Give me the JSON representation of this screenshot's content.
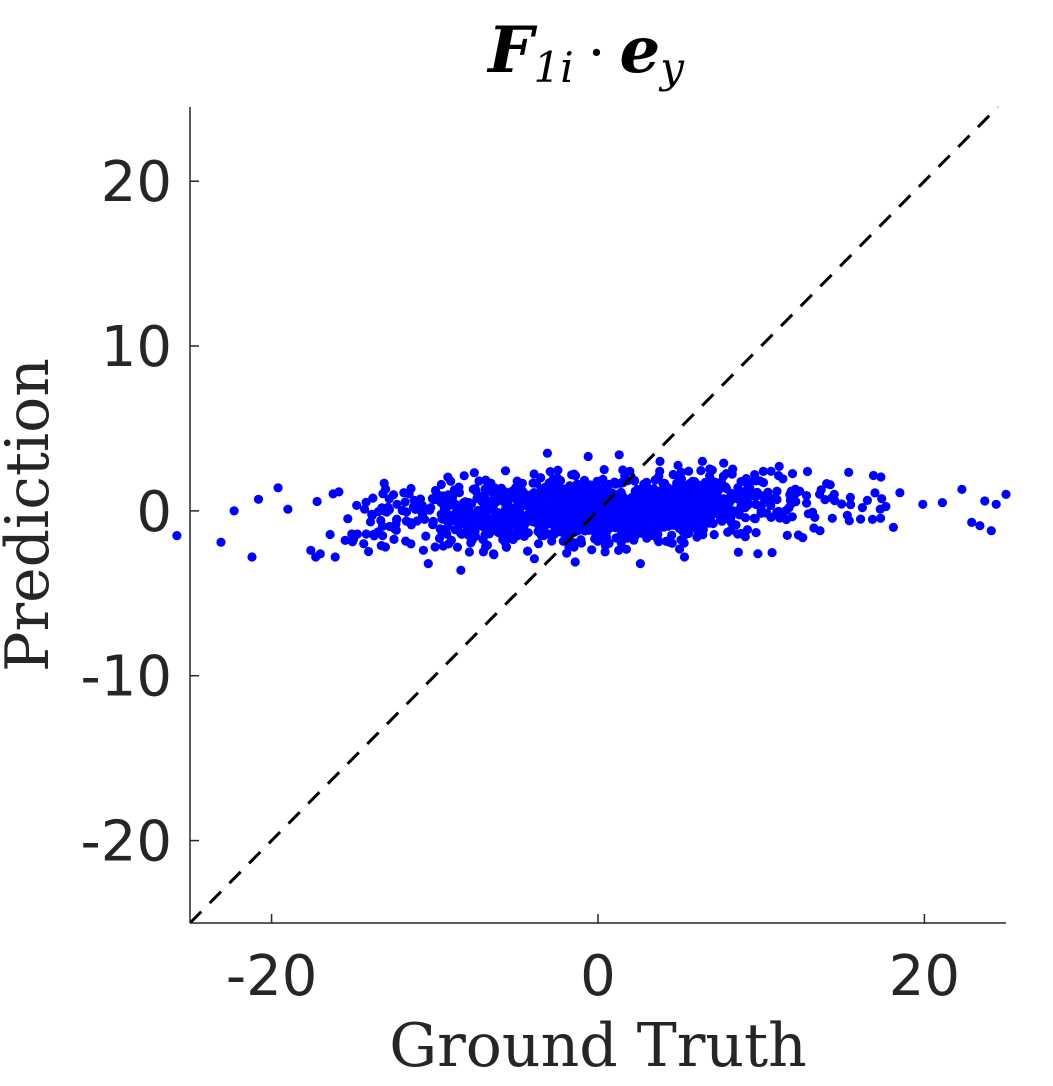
{
  "chart_data": {
    "type": "scatter",
    "title": {
      "main": "F",
      "sub1": "1i",
      "dot": "·",
      "main2": "e",
      "sub2": "y"
    },
    "xlabel": "Ground Truth",
    "ylabel": "Prediction",
    "xlim": [
      -25,
      25
    ],
    "ylim": [
      -25,
      24.5
    ],
    "xticks": [
      -20,
      0,
      20
    ],
    "yticks": [
      -20,
      -10,
      0,
      10,
      20
    ],
    "xtick_labels": [
      "-20",
      "0",
      "20"
    ],
    "ytick_labels": [
      "-20",
      "-10",
      "0",
      "10",
      "20"
    ],
    "grid": false,
    "reference_line": {
      "type": "identity",
      "style": "dashed",
      "color": "#000000"
    },
    "marker_color": "#0000ff",
    "series": [
      {
        "color": "#0000ff",
        "sample_points": [
          [
            -25.8,
            -1.5
          ],
          [
            -23.1,
            -1.9
          ],
          [
            -22.3,
            0.0
          ],
          [
            -21.2,
            -2.8
          ],
          [
            -20.8,
            0.7
          ],
          [
            -19.6,
            1.4
          ],
          [
            -19.0,
            0.1
          ],
          [
            -17.6,
            -2.4
          ],
          [
            -17.3,
            -2.8
          ],
          [
            -16.1,
            -2.8
          ],
          [
            -14.2,
            -1.4
          ],
          [
            -13.2,
            -1.5
          ],
          [
            -10.4,
            -3.2
          ],
          [
            -8.4,
            -3.6
          ],
          [
            -9.6,
            1.6
          ],
          [
            -3.1,
            3.5
          ],
          [
            -0.6,
            3.3
          ],
          [
            1.3,
            3.4
          ],
          [
            3.8,
            3.0
          ],
          [
            6.4,
            3.0
          ],
          [
            7.7,
            2.9
          ],
          [
            9.6,
            2.2
          ],
          [
            10.6,
            2.4
          ],
          [
            11.1,
            2.7
          ],
          [
            9.8,
            -2.6
          ],
          [
            5.3,
            -2.8
          ],
          [
            2.6,
            -3.2
          ],
          [
            -1.4,
            -3.1
          ],
          [
            -3.9,
            -2.9
          ],
          [
            13.6,
            -1.2
          ],
          [
            15.4,
            -0.6
          ],
          [
            16.2,
            0.2
          ],
          [
            17.3,
            0.1
          ],
          [
            18.5,
            1.1
          ],
          [
            18.1,
            -1.0
          ],
          [
            19.9,
            0.4
          ],
          [
            21.1,
            0.5
          ],
          [
            22.3,
            1.3
          ],
          [
            22.9,
            -0.7
          ],
          [
            23.7,
            0.6
          ],
          [
            23.4,
            -0.9
          ],
          [
            24.1,
            -1.2
          ],
          [
            25.0,
            1.0
          ],
          [
            24.4,
            0.4
          ]
        ]
      }
    ]
  }
}
